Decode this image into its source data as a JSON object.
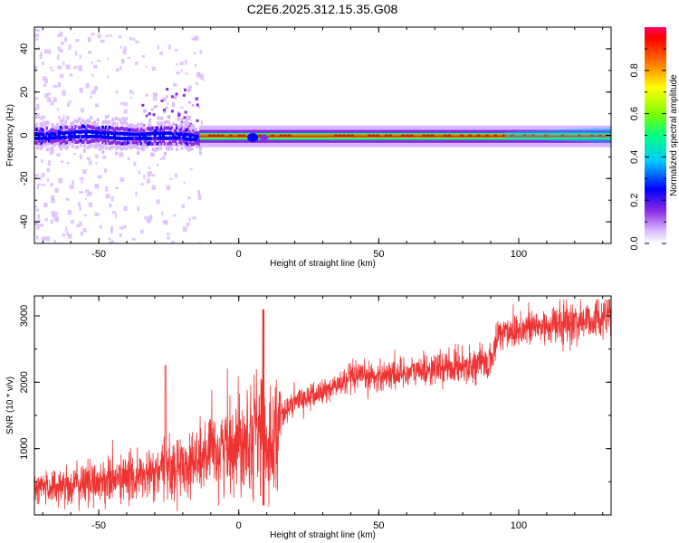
{
  "title": "C2E6.2025.312.15.35.G08",
  "chart_data": [
    {
      "type": "heatmap",
      "title": "C2E6.2025.312.15.35.G08",
      "xlabel": "Height of straight line (km)",
      "ylabel": "Frequency (Hz)",
      "xlim": [
        -73,
        133
      ],
      "ylim": [
        -50,
        50
      ],
      "xticks": [
        -50,
        0,
        50,
        100
      ],
      "yticks": [
        -40,
        -20,
        0,
        20,
        40
      ],
      "colorbar": {
        "label": "Normalized spectral amplitude",
        "range": [
          0,
          1
        ],
        "ticks": [
          "0.0",
          "0.2",
          "0.4",
          "0.6",
          "0.8"
        ],
        "colors": [
          "#ffffff",
          "#c9a6ff",
          "#7a00ff",
          "#0000ff",
          "#00c8ff",
          "#00ff80",
          "#7fff00",
          "#ffff00",
          "#ff9900",
          "#ff0000",
          "#ff0060"
        ]
      },
      "description_segments": [
        {
          "x_range": [
            -73,
            -15
          ],
          "center_hz": 0,
          "spread_hz": 3,
          "peak_amplitude": 0.45
        },
        {
          "x_range": [
            -15,
            133
          ],
          "center_hz": 0,
          "spread_hz": 1,
          "peak_amplitude": 0.95
        }
      ]
    },
    {
      "type": "line",
      "xlabel": "Height of straight line (km)",
      "ylabel": "SNR (10 * v/v)",
      "xlim": [
        -73,
        133
      ],
      "ylim": [
        0,
        3300
      ],
      "xticks": [
        -50,
        0,
        50,
        100
      ],
      "yticks": [
        1000,
        2000,
        3000
      ],
      "color": "#ee3333",
      "series": [
        {
          "name": "SNR",
          "x": [
            -73,
            -60,
            -50,
            -40,
            -30,
            -20,
            -10,
            0,
            8,
            10,
            15,
            20,
            30,
            40,
            50,
            60,
            70,
            80,
            90,
            93,
            100,
            110,
            120,
            133
          ],
          "y": [
            400,
            450,
            500,
            550,
            600,
            750,
            900,
            1150,
            1350,
            1000,
            1500,
            1700,
            1850,
            2050,
            2100,
            2150,
            2200,
            2250,
            2300,
            2750,
            2800,
            2850,
            2900,
            3000
          ]
        }
      ],
      "annotations": [
        {
          "x": 9,
          "y": 3100,
          "note": "spike"
        },
        {
          "x": 9,
          "y": 150,
          "note": "dip"
        },
        {
          "x": -26,
          "y": 2250,
          "note": "spike"
        }
      ]
    }
  ]
}
